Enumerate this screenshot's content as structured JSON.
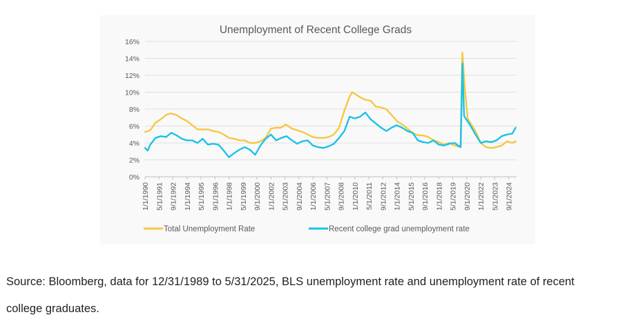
{
  "chart_data": {
    "type": "line",
    "title": "Unemployment of Recent College Grads",
    "xlabel": "",
    "ylabel": "",
    "ylim": [
      0,
      16
    ],
    "yticks": [
      "0%",
      "2%",
      "4%",
      "6%",
      "8%",
      "10%",
      "12%",
      "14%",
      "16%"
    ],
    "xlim": [
      "1/1/1990",
      "6/1/2025"
    ],
    "xticks": [
      "1/1/1990",
      "5/1/1991",
      "9/1/1992",
      "1/1/1994",
      "5/1/1995",
      "9/1/1996",
      "1/1/1998",
      "5/1/1999",
      "9/1/2000",
      "1/1/2002",
      "5/1/2003",
      "9/1/2004",
      "1/1/2006",
      "5/1/2007",
      "9/1/2008",
      "1/1/2010",
      "5/1/2011",
      "9/1/2012",
      "1/1/2014",
      "5/1/2015",
      "9/1/2016",
      "1/1/2018",
      "5/1/2019",
      "9/1/2020",
      "1/1/2022",
      "5/1/2023",
      "9/1/2024"
    ],
    "grid": "horizontal",
    "legend_position": "bottom",
    "series": [
      {
        "name": "Total Unemployment Rate",
        "color": "#f5c842",
        "x": [
          "1/1/1990",
          "7/1/1990",
          "1/1/1991",
          "7/1/1991",
          "1/1/1992",
          "6/1/1992",
          "1/1/1993",
          "7/1/1993",
          "1/1/1994",
          "7/1/1994",
          "1/1/1995",
          "7/1/1995",
          "1/1/1996",
          "7/1/1996",
          "1/1/1997",
          "7/1/1997",
          "1/1/1998",
          "7/1/1998",
          "1/1/1999",
          "7/1/1999",
          "1/1/2000",
          "7/1/2000",
          "1/1/2001",
          "7/1/2001",
          "1/1/2002",
          "7/1/2002",
          "1/1/2003",
          "6/1/2003",
          "1/1/2004",
          "7/1/2004",
          "1/1/2005",
          "7/1/2005",
          "1/1/2006",
          "7/1/2006",
          "1/1/2007",
          "7/1/2007",
          "1/1/2008",
          "7/1/2008",
          "1/1/2009",
          "7/1/2009",
          "10/1/2009",
          "1/1/2010",
          "7/1/2010",
          "1/1/2011",
          "7/1/2011",
          "1/1/2012",
          "7/1/2012",
          "1/1/2013",
          "7/1/2013",
          "1/1/2014",
          "7/1/2014",
          "1/1/2015",
          "7/1/2015",
          "1/1/2016",
          "7/1/2016",
          "1/1/2017",
          "7/1/2017",
          "1/1/2018",
          "7/1/2018",
          "1/1/2019",
          "7/1/2019",
          "2/1/2020",
          "4/1/2020",
          "5/1/2020",
          "7/1/2020",
          "10/1/2020",
          "1/1/2021",
          "7/1/2021",
          "1/1/2022",
          "7/1/2022",
          "1/1/2023",
          "7/1/2023",
          "1/1/2024",
          "7/1/2024",
          "1/1/2025",
          "5/1/2025"
        ],
        "y": [
          5.3,
          5.5,
          6.4,
          6.8,
          7.3,
          7.5,
          7.3,
          6.9,
          6.6,
          6.1,
          5.6,
          5.6,
          5.6,
          5.4,
          5.3,
          5.0,
          4.6,
          4.5,
          4.3,
          4.3,
          4.0,
          4.0,
          4.2,
          4.6,
          5.7,
          5.8,
          5.8,
          6.2,
          5.7,
          5.5,
          5.3,
          5.0,
          4.7,
          4.6,
          4.6,
          4.7,
          5.0,
          5.8,
          7.8,
          9.5,
          10.0,
          9.8,
          9.4,
          9.1,
          9.0,
          8.3,
          8.2,
          8.0,
          7.3,
          6.6,
          6.2,
          5.7,
          5.2,
          4.9,
          4.9,
          4.7,
          4.3,
          4.1,
          3.8,
          4.0,
          3.7,
          3.5,
          14.7,
          13.2,
          10.2,
          6.9,
          6.4,
          5.4,
          4.0,
          3.5,
          3.4,
          3.5,
          3.7,
          4.2,
          4.0,
          4.2
        ]
      },
      {
        "name": "Recent college grad unemployment rate",
        "color": "#19c3e6",
        "x": [
          "1/1/1990",
          "4/1/1990",
          "7/1/1990",
          "1/1/1991",
          "7/1/1991",
          "1/1/1992",
          "7/1/1992",
          "1/1/1993",
          "7/1/1993",
          "1/1/1994",
          "7/1/1994",
          "1/1/1995",
          "7/1/1995",
          "1/1/1996",
          "7/1/1996",
          "1/1/1997",
          "7/1/1997",
          "1/1/1998",
          "7/1/1998",
          "1/1/1999",
          "7/1/1999",
          "1/1/2000",
          "7/1/2000",
          "1/1/2001",
          "7/1/2001",
          "1/1/2002",
          "7/1/2002",
          "1/1/2003",
          "7/1/2003",
          "1/1/2004",
          "7/1/2004",
          "1/1/2005",
          "7/1/2005",
          "1/1/2006",
          "7/1/2006",
          "1/1/2007",
          "7/1/2007",
          "1/1/2008",
          "7/1/2008",
          "1/1/2009",
          "7/1/2009",
          "1/1/2010",
          "7/1/2010",
          "1/1/2011",
          "7/1/2011",
          "1/1/2012",
          "7/1/2012",
          "1/1/2013",
          "7/1/2013",
          "1/1/2014",
          "7/1/2014",
          "1/1/2015",
          "7/1/2015",
          "1/1/2016",
          "7/1/2016",
          "1/1/2017",
          "7/1/2017",
          "1/1/2018",
          "7/1/2018",
          "1/1/2019",
          "7/1/2019",
          "2/1/2020",
          "4/1/2020",
          "6/1/2020",
          "9/1/2020",
          "1/1/2021",
          "7/1/2021",
          "1/1/2022",
          "7/1/2022",
          "1/1/2023",
          "7/1/2023",
          "1/1/2024",
          "7/1/2024",
          "1/1/2025",
          "5/1/2025"
        ],
        "y": [
          3.4,
          3.1,
          3.8,
          4.6,
          4.8,
          4.7,
          5.2,
          4.9,
          4.5,
          4.3,
          4.3,
          4.0,
          4.5,
          3.8,
          3.9,
          3.8,
          3.1,
          2.3,
          2.8,
          3.2,
          3.5,
          3.2,
          2.6,
          3.7,
          4.5,
          5.0,
          4.3,
          4.6,
          4.8,
          4.3,
          3.9,
          4.2,
          4.3,
          3.7,
          3.5,
          3.4,
          3.6,
          3.9,
          4.6,
          5.4,
          7.1,
          6.9,
          7.1,
          7.6,
          6.8,
          6.3,
          5.8,
          5.4,
          5.8,
          6.1,
          5.8,
          5.4,
          5.2,
          4.3,
          4.1,
          4.0,
          4.3,
          3.8,
          3.7,
          3.9,
          4.0,
          3.5,
          13.4,
          7.2,
          6.7,
          6.1,
          5.0,
          4.0,
          4.2,
          4.1,
          4.3,
          4.8,
          5.0,
          5.1,
          5.8
        ]
      }
    ]
  },
  "caption": {
    "line1": "Source: Bloomberg, data for 12/31/1989 to 5/31/2025, BLS unemployment rate and unemployment rate of recent",
    "line2": "college graduates."
  }
}
